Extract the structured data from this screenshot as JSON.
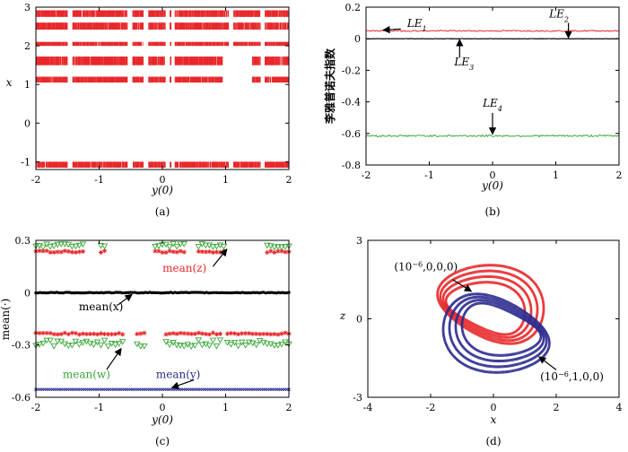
{
  "chart_data": [
    {
      "type": "scatter",
      "panel": "(a)",
      "xlabel": "y(0)",
      "ylabel": "x",
      "xlim": [
        -2,
        2
      ],
      "ylim": [
        -1.2,
        3
      ],
      "xticks": [
        "-2",
        "-1",
        "0",
        "1",
        "2"
      ],
      "yticks": [
        "-1",
        "0",
        "1",
        "2",
        "3"
      ],
      "grid": false,
      "color": "#e8282b",
      "bands_y": [
        [
          2.75,
          2.92
        ],
        [
          2.42,
          2.6
        ],
        [
          2.0,
          2.1
        ],
        [
          1.5,
          1.72
        ],
        [
          1.05,
          1.2
        ],
        [
          -1.0,
          -1.15
        ]
      ],
      "gaps_x": [
        [
          -1.5,
          -1.42
        ],
        [
          -0.55,
          -0.47
        ],
        [
          -0.3,
          -0.22
        ],
        [
          0.05,
          0.12
        ],
        [
          0.14,
          0.2
        ],
        [
          1.05,
          1.12
        ],
        [
          1.55,
          1.62
        ]
      ],
      "gaps_mid_x": [
        [
          0.95,
          1.42
        ]
      ]
    },
    {
      "type": "line",
      "panel": "(b)",
      "xlabel": "y(0)",
      "ylabel": "李雅普诺夫指数",
      "xlim": [
        -2,
        2
      ],
      "ylim": [
        -0.8,
        0.2
      ],
      "xticks": [
        "-2",
        "-1",
        "0",
        "1",
        "2"
      ],
      "yticks": [
        "0.2",
        "0",
        "-0.2",
        "-0.4",
        "-0.6",
        "-0.8"
      ],
      "grid": false,
      "series": [
        {
          "name": "LE1",
          "level": 0.05,
          "color": "#e8282b"
        },
        {
          "name": "LE2",
          "level": 0.0,
          "color": "#2b2b8f"
        },
        {
          "name": "LE3",
          "level": 0.0,
          "color": "#000000"
        },
        {
          "name": "LE4",
          "level": -0.615,
          "color": "#3aa83a"
        }
      ],
      "annotations": [
        {
          "base": "LE",
          "sub": "1",
          "x": -1.35,
          "y": 0.075
        },
        {
          "base": "LE",
          "sub": "2",
          "x": 1.05,
          "y": 0.135
        },
        {
          "base": "LE",
          "sub": "3",
          "x": -0.45,
          "y": -0.17
        },
        {
          "base": "LE",
          "sub": "4",
          "x": 0.0,
          "y": -0.43
        }
      ]
    },
    {
      "type": "scatter",
      "panel": "(c)",
      "xlabel": "y(0)",
      "ylabel": "mean(·)",
      "xlim": [
        -2,
        2
      ],
      "ylim": [
        -0.6,
        0.3
      ],
      "xticks": [
        "-2",
        "-1",
        "0",
        "1",
        "2"
      ],
      "yticks": [
        "0.3",
        "0",
        "-0.3",
        "-0.6"
      ],
      "grid": false,
      "series": [
        {
          "name": "mean(x)",
          "level": 0.0,
          "color": "#000000",
          "marker": "dot"
        },
        {
          "name": "mean(y)",
          "level": -0.555,
          "color": "#2b2b8f",
          "marker": "x"
        },
        {
          "name": "mean(z)",
          "levels": [
            0.235,
            -0.235
          ],
          "color": "#e8282b",
          "marker": "star"
        },
        {
          "name": "mean(w)",
          "levels": [
            0.27,
            -0.27
          ],
          "color": "#3aa83a",
          "marker": "triangle"
        }
      ],
      "annotations": [
        {
          "text": "mean(z)",
          "color": "#e8282b"
        },
        {
          "text": "mean(x)",
          "color": "#000000"
        },
        {
          "text": "mean(w)",
          "color": "#3aa83a"
        },
        {
          "text": "mean(y)",
          "color": "#2b2b8f"
        }
      ]
    },
    {
      "type": "line",
      "panel": "(d)",
      "xlabel": "x",
      "ylabel": "z",
      "xlim": [
        -4,
        4
      ],
      "ylim": [
        -3,
        3
      ],
      "xticks": [
        "-4",
        "-2",
        "0",
        "2",
        "4"
      ],
      "yticks": [
        "3",
        "0",
        "-3"
      ],
      "grid": false,
      "series": [
        {
          "name": "(10⁻⁶,0,0,0)",
          "color": "#e8282b"
        },
        {
          "name": "(10⁻⁶,1,0,0)",
          "color": "#2b2b8f"
        }
      ],
      "annotations": [
        {
          "base": "(10",
          "sup": "−6",
          "rest": ",0,0,0)"
        },
        {
          "base": "(10",
          "sup": "−6",
          "rest": ",1,0,0)"
        }
      ]
    }
  ]
}
